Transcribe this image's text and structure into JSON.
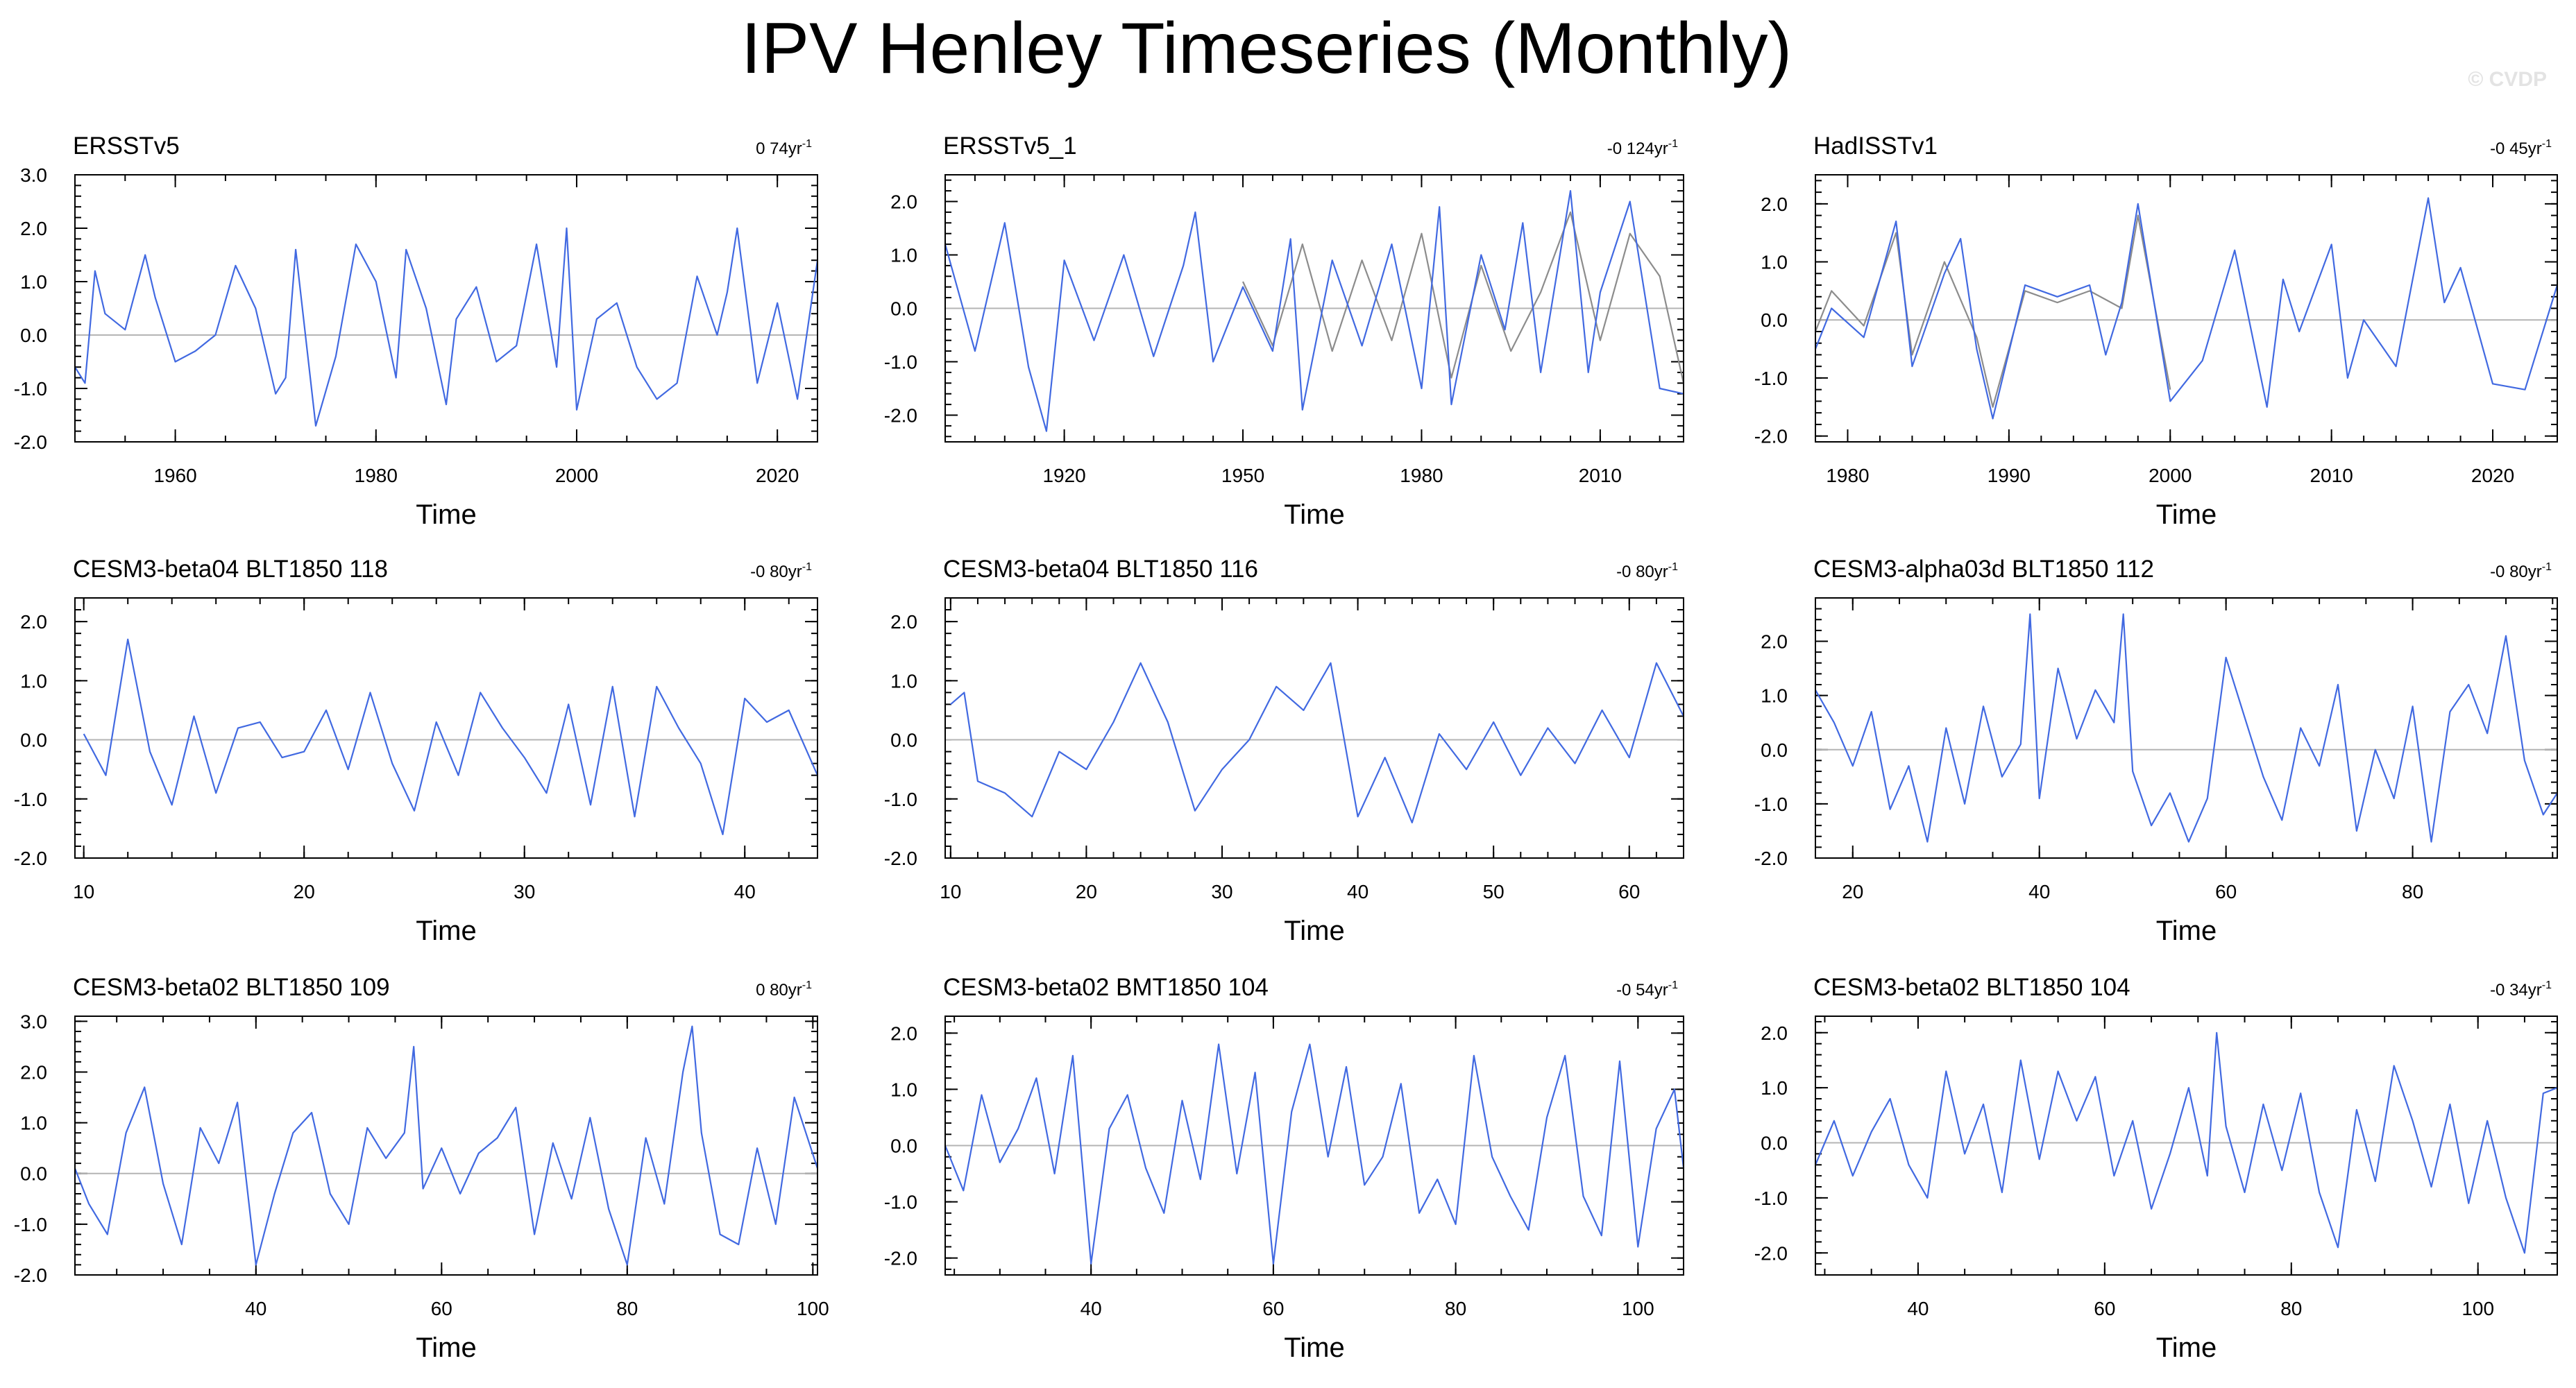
{
  "figure": {
    "title": "IPV Henley Timeseries (Monthly)",
    "watermark": "© CVDP"
  },
  "colors": {
    "primary_series": "#4169e1",
    "secondary_series": "#8c8c8c",
    "zero_line": "#b4b4b4"
  },
  "chart_data": [
    {
      "type": "line",
      "title": "ERSSTv5",
      "trend_label": "0 74yr",
      "trend_unit": "-1",
      "xlabel": "Time",
      "xlim": [
        1950,
        2024
      ],
      "ylim": [
        -2.0,
        3.0
      ],
      "yticks": [
        -2.0,
        -1.0,
        0.0,
        1.0,
        2.0,
        3.0
      ],
      "xticks": [
        1960,
        1980,
        2000,
        2020
      ],
      "series": [
        {
          "x": [
            1950,
            1951,
            1952,
            1953,
            1955,
            1957,
            1958,
            1960,
            1962,
            1964,
            1966,
            1968,
            1970,
            1971,
            1972,
            1974,
            1976,
            1978,
            1980,
            1982,
            1983,
            1985,
            1987,
            1988,
            1990,
            1992,
            1994,
            1996,
            1998,
            1999,
            2000,
            2002,
            2004,
            2006,
            2008,
            2010,
            2012,
            2014,
            2015,
            2016,
            2018,
            2020,
            2022,
            2024
          ],
          "y": [
            -0.6,
            -0.9,
            1.2,
            0.4,
            0.1,
            1.5,
            0.7,
            -0.5,
            -0.3,
            0.0,
            1.3,
            0.5,
            -1.1,
            -0.8,
            1.6,
            -1.7,
            -0.4,
            1.7,
            1.0,
            -0.8,
            1.6,
            0.5,
            -1.3,
            0.3,
            0.9,
            -0.5,
            -0.2,
            1.7,
            -0.6,
            2.0,
            -1.4,
            0.3,
            0.6,
            -0.6,
            -1.2,
            -0.9,
            1.1,
            0.0,
            0.8,
            2.0,
            -0.9,
            0.6,
            -1.2,
            1.4
          ]
        }
      ]
    },
    {
      "type": "line",
      "title": "ERSSTv5_1",
      "trend_label": "-0 124yr",
      "trend_unit": "-1",
      "xlabel": "Time",
      "xlim": [
        1900,
        2024
      ],
      "ylim": [
        -2.5,
        2.5
      ],
      "yticks": [
        -2.0,
        -1.0,
        0.0,
        1.0,
        2.0
      ],
      "xticks": [
        1920,
        1950,
        1980,
        2010
      ],
      "series": [
        {
          "x": [
            1900,
            1905,
            1910,
            1914,
            1917,
            1920,
            1925,
            1930,
            1935,
            1940,
            1942,
            1945,
            1950,
            1955,
            1958,
            1960,
            1965,
            1970,
            1975,
            1980,
            1983,
            1985,
            1990,
            1994,
            1997,
            2000,
            2005,
            2008,
            2010,
            2015,
            2020,
            2024
          ],
          "y": [
            1.2,
            -0.8,
            1.6,
            -1.1,
            -2.3,
            0.9,
            -0.6,
            1.0,
            -0.9,
            0.8,
            1.8,
            -1.0,
            0.4,
            -0.8,
            1.3,
            -1.9,
            0.9,
            -0.7,
            1.2,
            -1.5,
            1.9,
            -1.8,
            1.0,
            -0.4,
            1.6,
            -1.2,
            2.2,
            -1.2,
            0.3,
            2.0,
            -1.5,
            -1.6
          ]
        },
        {
          "x": [
            1950,
            1955,
            1960,
            1965,
            1970,
            1975,
            1980,
            1985,
            1990,
            1995,
            2000,
            2005,
            2010,
            2015,
            2020,
            2024
          ],
          "y": [
            0.5,
            -0.7,
            1.2,
            -0.8,
            0.9,
            -0.6,
            1.4,
            -1.3,
            0.8,
            -0.8,
            0.3,
            1.8,
            -0.6,
            1.4,
            0.6,
            -1.4
          ]
        }
      ]
    },
    {
      "type": "line",
      "title": "HadISSTv1",
      "trend_label": "-0 45yr",
      "trend_unit": "-1",
      "xlabel": "Time",
      "xlim": [
        1978,
        2024
      ],
      "ylim": [
        -2.1,
        2.5
      ],
      "yticks": [
        -2.0,
        -1.0,
        0.0,
        1.0,
        2.0
      ],
      "xticks": [
        1980,
        1990,
        2000,
        2010,
        2020
      ],
      "series": [
        {
          "x": [
            1978,
            1979,
            1981,
            1983,
            1984,
            1986,
            1987,
            1988,
            1989,
            1991,
            1993,
            1995,
            1996,
            1997,
            1998,
            1999,
            2000,
            2002,
            2004,
            2006,
            2007,
            2008,
            2010,
            2011,
            2012,
            2014,
            2016,
            2017,
            2018,
            2020,
            2022,
            2024
          ],
          "y": [
            -0.5,
            0.2,
            -0.3,
            1.7,
            -0.8,
            0.8,
            1.4,
            -0.5,
            -1.7,
            0.6,
            0.4,
            0.6,
            -0.6,
            0.3,
            2.0,
            0.3,
            -1.4,
            -0.7,
            1.2,
            -1.5,
            0.7,
            -0.2,
            1.3,
            -1.0,
            0.0,
            -0.8,
            2.1,
            0.3,
            0.9,
            -1.1,
            -1.2,
            0.6
          ]
        },
        {
          "x": [
            1978,
            1979,
            1981,
            1983,
            1984,
            1986,
            1988,
            1989,
            1991,
            1993,
            1995,
            1997,
            1998,
            2000
          ],
          "y": [
            -0.2,
            0.5,
            -0.1,
            1.5,
            -0.6,
            1.0,
            -0.3,
            -1.5,
            0.5,
            0.3,
            0.5,
            0.2,
            1.8,
            -1.2
          ]
        }
      ]
    },
    {
      "type": "line",
      "title": "CESM3-beta04 BLT1850 118",
      "trend_label": "-0 80yr",
      "trend_unit": "-1",
      "xlabel": "Time",
      "xlim": [
        9.6,
        43.3
      ],
      "ylim": [
        -2.0,
        2.4
      ],
      "yticks": [
        -2.0,
        -1.0,
        0.0,
        1.0,
        2.0
      ],
      "xticks": [
        10,
        20,
        30,
        40
      ],
      "series": [
        {
          "x": [
            10,
            11,
            12,
            13,
            14,
            15,
            16,
            17,
            18,
            19,
            20,
            21,
            22,
            23,
            24,
            25,
            26,
            27,
            28,
            29,
            30,
            31,
            32,
            33,
            34,
            35,
            36,
            37,
            38,
            39,
            40,
            41,
            42,
            43.3
          ],
          "y": [
            0.1,
            -0.6,
            1.7,
            -0.2,
            -1.1,
            0.4,
            -0.9,
            0.2,
            0.3,
            -0.3,
            -0.2,
            0.5,
            -0.5,
            0.8,
            -0.4,
            -1.2,
            0.3,
            -0.6,
            0.8,
            0.2,
            -0.3,
            -0.9,
            0.6,
            -1.1,
            0.9,
            -1.3,
            0.9,
            0.2,
            -0.4,
            -1.6,
            0.7,
            0.3,
            0.5,
            -0.6
          ]
        }
      ]
    },
    {
      "type": "line",
      "title": "CESM3-beta04 BLT1850 116",
      "trend_label": "-0 80yr",
      "trend_unit": "-1",
      "xlabel": "Time",
      "xlim": [
        9.6,
        64
      ],
      "ylim": [
        -2.0,
        2.4
      ],
      "yticks": [
        -2.0,
        -1.0,
        0.0,
        1.0,
        2.0
      ],
      "xticks": [
        10,
        20,
        30,
        40,
        50,
        60
      ],
      "series": [
        {
          "x": [
            10,
            11,
            12,
            14,
            16,
            18,
            20,
            22,
            24,
            26,
            28,
            30,
            32,
            34,
            36,
            38,
            40,
            42,
            44,
            46,
            48,
            50,
            52,
            54,
            56,
            58,
            60,
            62,
            64
          ],
          "y": [
            0.6,
            0.8,
            -0.7,
            -0.9,
            -1.3,
            -0.2,
            -0.5,
            0.3,
            1.3,
            0.3,
            -1.2,
            -0.5,
            0.0,
            0.9,
            0.5,
            1.3,
            -1.3,
            -0.3,
            -1.4,
            0.1,
            -0.5,
            0.3,
            -0.6,
            0.2,
            -0.4,
            0.5,
            -0.3,
            1.3,
            0.4
          ]
        }
      ]
    },
    {
      "type": "line",
      "title": "CESM3-alpha03d BLT1850 112",
      "trend_label": "-0 80yr",
      "trend_unit": "-1",
      "xlabel": "Time",
      "xlim": [
        16,
        95.5
      ],
      "ylim": [
        -2.0,
        2.8
      ],
      "yticks": [
        -2.0,
        -1.0,
        0.0,
        1.0,
        2.0
      ],
      "xticks": [
        20,
        40,
        60,
        80
      ],
      "series": [
        {
          "x": [
            16,
            18,
            20,
            22,
            24,
            26,
            28,
            30,
            32,
            34,
            36,
            38,
            39,
            40,
            42,
            44,
            46,
            48,
            49,
            50,
            52,
            54,
            56,
            58,
            60,
            62,
            64,
            66,
            68,
            70,
            72,
            74,
            76,
            78,
            80,
            82,
            84,
            86,
            88,
            90,
            92,
            94,
            95.5
          ],
          "y": [
            1.1,
            0.5,
            -0.3,
            0.7,
            -1.1,
            -0.3,
            -1.7,
            0.4,
            -1.0,
            0.8,
            -0.5,
            0.1,
            2.5,
            -0.9,
            1.5,
            0.2,
            1.1,
            0.5,
            2.5,
            -0.4,
            -1.4,
            -0.8,
            -1.7,
            -0.9,
            1.7,
            0.6,
            -0.5,
            -1.3,
            0.4,
            -0.3,
            1.2,
            -1.5,
            0.0,
            -0.9,
            0.8,
            -1.7,
            0.7,
            1.2,
            0.3,
            2.1,
            -0.2,
            -1.2,
            -0.8
          ]
        }
      ]
    },
    {
      "type": "line",
      "title": "CESM3-beta02 BLT1850 109",
      "trend_label": "0 80yr",
      "trend_unit": "-1",
      "xlabel": "Time",
      "xlim": [
        20.5,
        100.5
      ],
      "ylim": [
        -2.0,
        3.1
      ],
      "yticks": [
        -2.0,
        -1.0,
        0.0,
        1.0,
        2.0,
        3.0
      ],
      "xticks": [
        40,
        60,
        80,
        100
      ],
      "series": [
        {
          "x": [
            20.5,
            22,
            24,
            26,
            28,
            30,
            32,
            34,
            36,
            38,
            40,
            42,
            44,
            46,
            48,
            50,
            52,
            54,
            56,
            57,
            58,
            60,
            62,
            64,
            66,
            68,
            70,
            72,
            74,
            76,
            78,
            80,
            82,
            84,
            86,
            87,
            88,
            90,
            92,
            94,
            96,
            98,
            100.5
          ],
          "y": [
            0.1,
            -0.6,
            -1.2,
            0.8,
            1.7,
            -0.2,
            -1.4,
            0.9,
            0.2,
            1.4,
            -1.8,
            -0.4,
            0.8,
            1.2,
            -0.4,
            -1.0,
            0.9,
            0.3,
            0.8,
            2.5,
            -0.3,
            0.5,
            -0.4,
            0.4,
            0.7,
            1.3,
            -1.2,
            0.6,
            -0.5,
            1.1,
            -0.7,
            -1.8,
            0.7,
            -0.6,
            2.0,
            2.9,
            0.8,
            -1.2,
            -1.4,
            0.5,
            -1.0,
            1.5,
            0.1
          ]
        }
      ]
    },
    {
      "type": "line",
      "title": "CESM3-beta02 BMT1850 104",
      "trend_label": "-0 54yr",
      "trend_unit": "-1",
      "xlabel": "Time",
      "xlim": [
        24,
        105
      ],
      "ylim": [
        -2.3,
        2.3
      ],
      "yticks": [
        -2.0,
        -1.0,
        0.0,
        1.0,
        2.0
      ],
      "xticks": [
        40,
        60,
        80,
        100
      ],
      "series": [
        {
          "x": [
            24,
            26,
            28,
            30,
            32,
            34,
            36,
            38,
            40,
            42,
            44,
            46,
            48,
            50,
            52,
            54,
            56,
            58,
            60,
            62,
            64,
            66,
            68,
            70,
            72,
            74,
            76,
            78,
            80,
            82,
            84,
            86,
            88,
            90,
            92,
            94,
            96,
            98,
            100,
            102,
            104,
            105
          ],
          "y": [
            0.0,
            -0.8,
            0.9,
            -0.3,
            0.3,
            1.2,
            -0.5,
            1.6,
            -2.1,
            0.3,
            0.9,
            -0.4,
            -1.2,
            0.8,
            -0.6,
            1.8,
            -0.5,
            1.3,
            -2.1,
            0.6,
            1.8,
            -0.2,
            1.4,
            -0.7,
            -0.2,
            1.1,
            -1.2,
            -0.6,
            -1.4,
            1.6,
            -0.2,
            -0.9,
            -1.5,
            0.5,
            1.6,
            -0.9,
            -1.6,
            1.5,
            -1.8,
            0.3,
            1.0,
            -0.4
          ]
        }
      ]
    },
    {
      "type": "line",
      "title": "CESM3-beta02 BLT1850 104",
      "trend_label": "-0 34yr",
      "trend_unit": "-1",
      "xlabel": "Time",
      "xlim": [
        29,
        108.5
      ],
      "ylim": [
        -2.4,
        2.3
      ],
      "yticks": [
        -2.0,
        -1.0,
        0.0,
        1.0,
        2.0
      ],
      "xticks": [
        40,
        60,
        80,
        100
      ],
      "series": [
        {
          "x": [
            29,
            31,
            33,
            35,
            37,
            39,
            41,
            43,
            45,
            47,
            49,
            51,
            53,
            55,
            57,
            59,
            61,
            63,
            65,
            67,
            69,
            71,
            72,
            73,
            75,
            77,
            79,
            81,
            83,
            85,
            87,
            89,
            91,
            93,
            95,
            97,
            99,
            101,
            103,
            105,
            107,
            108.5
          ],
          "y": [
            -0.4,
            0.4,
            -0.6,
            0.2,
            0.8,
            -0.4,
            -1.0,
            1.3,
            -0.2,
            0.7,
            -0.9,
            1.5,
            -0.3,
            1.3,
            0.4,
            1.2,
            -0.6,
            0.4,
            -1.2,
            -0.2,
            1.0,
            -0.6,
            2.0,
            0.3,
            -0.9,
            0.7,
            -0.5,
            0.9,
            -0.9,
            -1.9,
            0.6,
            -0.7,
            1.4,
            0.4,
            -0.8,
            0.7,
            -1.1,
            0.4,
            -1.0,
            -2.0,
            0.9,
            1.0
          ]
        }
      ]
    }
  ]
}
